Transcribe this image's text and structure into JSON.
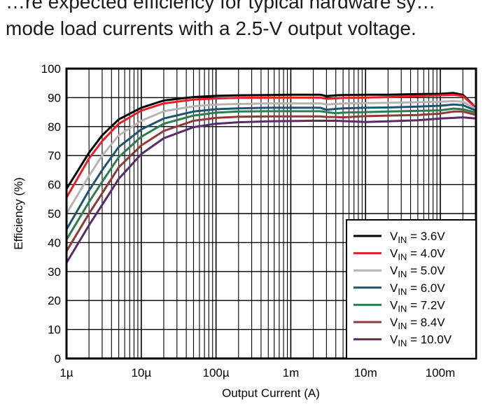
{
  "intro_text": {
    "line1": "…re expected efficiency for typical hardware sy…",
    "line2": "mode load currents with a 2.5-V output voltage."
  },
  "chart_data": {
    "type": "line",
    "title": "",
    "xlabel": "Output Current (A)",
    "ylabel": "Efficiency (%)",
    "xscale": "log",
    "xlim": [
      1e-06,
      0.3
    ],
    "ylim": [
      0,
      100
    ],
    "grid": true,
    "legend_position": "bottom-right",
    "x_ticks": [
      {
        "value": 1e-06,
        "label": "1µ"
      },
      {
        "value": 1e-05,
        "label": "10µ"
      },
      {
        "value": 0.0001,
        "label": "100µ"
      },
      {
        "value": 0.001,
        "label": "1m"
      },
      {
        "value": 0.01,
        "label": "10m"
      },
      {
        "value": 0.1,
        "label": "100m"
      }
    ],
    "y_ticks": [
      0,
      10,
      20,
      30,
      40,
      50,
      60,
      70,
      80,
      90,
      100
    ],
    "x": [
      1e-06,
      2e-06,
      3e-06,
      5e-06,
      1e-05,
      2e-05,
      5e-05,
      0.0001,
      0.0002,
      0.0005,
      0.001,
      0.002,
      0.0025,
      0.003,
      0.004,
      0.005,
      0.01,
      0.02,
      0.05,
      0.1,
      0.15,
      0.2,
      0.3
    ],
    "series": [
      {
        "name": "VIN = 3.6V",
        "color": "#000000",
        "values": [
          58.5,
          71,
          77,
          82.5,
          86.5,
          89,
          90.2,
          90.6,
          90.8,
          90.9,
          91,
          91,
          91,
          90.5,
          90.8,
          90.9,
          91,
          91,
          91.2,
          91.3,
          91.6,
          91,
          86.5
        ]
      },
      {
        "name": "VIN = 4.0V",
        "color": "#ee1c24",
        "values": [
          55.5,
          69,
          75,
          81,
          85.5,
          88,
          89.3,
          89.7,
          89.9,
          90,
          90,
          90,
          90,
          89.6,
          89.7,
          89.9,
          90,
          90.2,
          90.5,
          90.8,
          91,
          90.5,
          86.5
        ]
      },
      {
        "name": "VIN = 5.0V",
        "color": "#b4b4b4",
        "values": [
          50,
          63,
          70,
          77,
          82,
          85.3,
          87,
          87.6,
          87.8,
          88,
          88,
          88,
          88,
          87.6,
          87.8,
          88,
          88.1,
          88.2,
          88.4,
          88.6,
          88.8,
          88.6,
          86
        ]
      },
      {
        "name": "VIN = 6.0V",
        "color": "#1c5572",
        "values": [
          44.5,
          58,
          65,
          73,
          79,
          82.8,
          85.2,
          86,
          86.3,
          86.5,
          86.5,
          86.5,
          86.5,
          85.8,
          86.1,
          86.3,
          86.5,
          86.6,
          86.9,
          87.2,
          87.6,
          87.4,
          85.5
        ]
      },
      {
        "name": "VIN = 7.2V",
        "color": "#2e7d4f",
        "values": [
          41,
          54,
          61,
          69.5,
          76.5,
          81,
          83.8,
          84.8,
          85.2,
          85.3,
          85.3,
          85.3,
          85.3,
          85,
          84.6,
          84.8,
          85,
          85.2,
          85.4,
          85.6,
          86.2,
          86,
          84.8
        ]
      },
      {
        "name": "VIN = 8.4V",
        "color": "#8e3a36",
        "values": [
          37,
          50,
          57,
          66,
          73.5,
          78.5,
          82,
          83,
          83.4,
          83.5,
          83.5,
          83.5,
          83.5,
          83.3,
          83.3,
          83.2,
          83.6,
          83.8,
          84,
          84.5,
          85.2,
          85.2,
          84
        ]
      },
      {
        "name": "VIN = 10.0V",
        "color": "#5b2a6b",
        "values": [
          33,
          46,
          53,
          62,
          70.5,
          76,
          79.8,
          81,
          81.5,
          81.8,
          81.9,
          82,
          82,
          82,
          82,
          81.9,
          81.6,
          81.8,
          82.2,
          82.8,
          83,
          83.2,
          82.8
        ]
      }
    ]
  }
}
